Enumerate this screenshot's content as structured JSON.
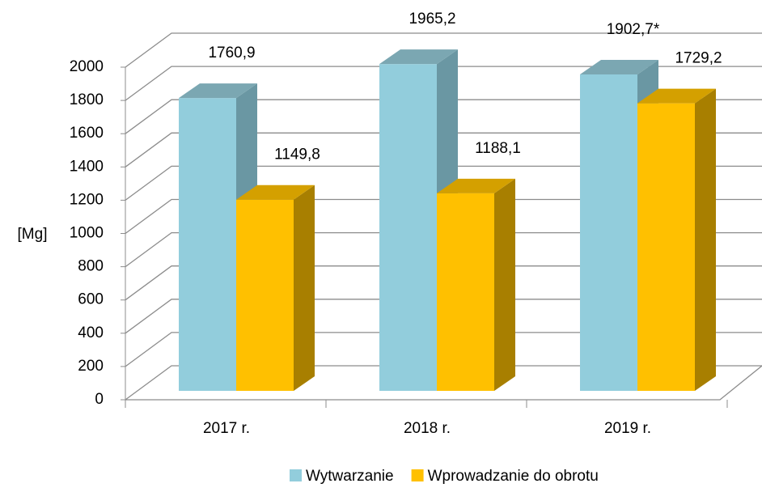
{
  "chart_data": {
    "type": "bar3d",
    "ylabel": "[Mg]",
    "categories": [
      "2017 r.",
      "2018 r.",
      "2019 r."
    ],
    "series": [
      {
        "name": "Wytwarzanie",
        "color": "#92cddc",
        "values": [
          1760.9,
          1965.2,
          1902.7
        ],
        "value_labels": [
          "1760,9",
          "1965,2",
          "1902,7*"
        ]
      },
      {
        "name": "Wprowadzanie do obrotu",
        "color": "#ffc000",
        "values": [
          1149.8,
          1188.1,
          1729.2
        ],
        "value_labels": [
          "1149,8",
          "1188,1",
          "1729,2"
        ]
      }
    ],
    "ylim": [
      0,
      2000
    ],
    "yticks": [
      0,
      200,
      400,
      600,
      800,
      1000,
      1200,
      1400,
      1600,
      1800,
      2000
    ],
    "grid": true,
    "legend": "bottom"
  }
}
